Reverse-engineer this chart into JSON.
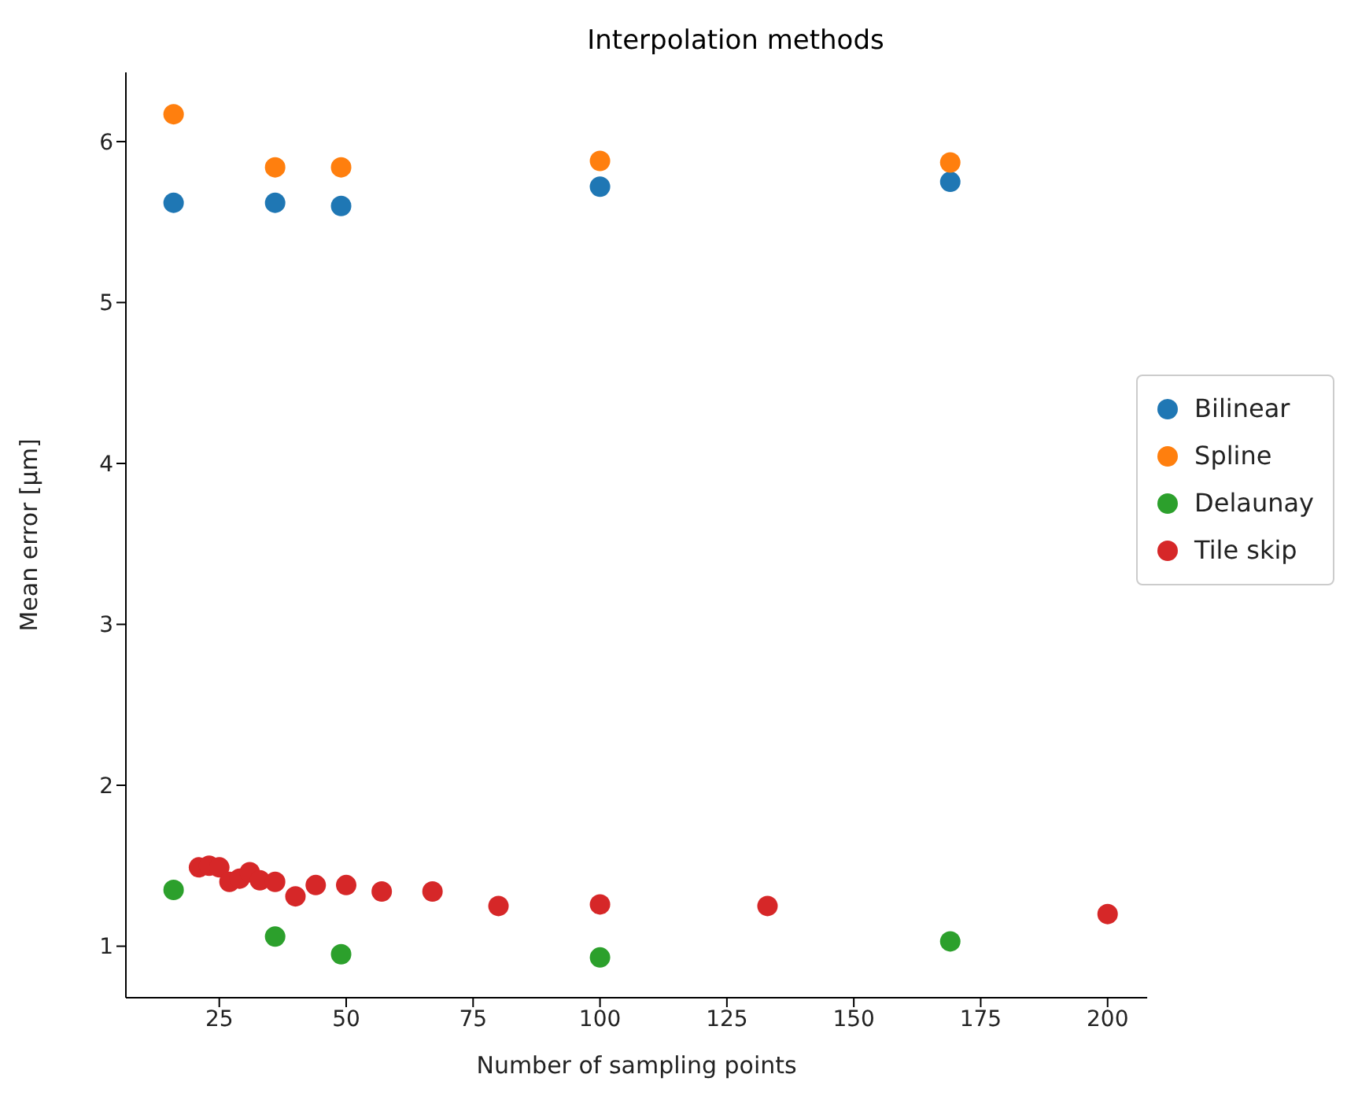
{
  "chart_data": {
    "type": "scatter",
    "title": "Interpolation methods",
    "xlabel": "Number of sampling points",
    "ylabel": "Mean error [μm]",
    "xlim": [
      6.6,
      207.8
    ],
    "xticks": [
      25,
      50,
      75,
      100,
      125,
      150,
      175,
      200
    ],
    "ylim": [
      0.68,
      6.43
    ],
    "yticks": [
      1,
      2,
      3,
      4,
      5,
      6
    ],
    "grid": false,
    "legend": "right",
    "marker": "circle",
    "series": [
      {
        "name": "Bilinear",
        "color": "#1f77b4",
        "x": [
          16,
          36,
          49,
          100,
          169
        ],
        "values": [
          5.62,
          5.62,
          5.6,
          5.72,
          5.75
        ]
      },
      {
        "name": "Spline",
        "color": "#ff7f0e",
        "x": [
          16,
          36,
          49,
          100,
          169
        ],
        "values": [
          6.17,
          5.84,
          5.84,
          5.88,
          5.87
        ]
      },
      {
        "name": "Delaunay",
        "color": "#2ca02c",
        "x": [
          16,
          36,
          49,
          100,
          169
        ],
        "values": [
          1.35,
          1.06,
          0.95,
          0.93,
          1.03
        ]
      },
      {
        "name": "Tile skip",
        "color": "#d62728",
        "x": [
          21,
          23,
          25,
          27,
          29,
          31,
          33,
          36,
          40,
          44,
          50,
          57,
          67,
          80,
          100,
          133,
          200
        ],
        "values": [
          1.49,
          1.5,
          1.49,
          1.4,
          1.42,
          1.46,
          1.41,
          1.4,
          1.31,
          1.38,
          1.38,
          1.34,
          1.34,
          1.25,
          1.26,
          1.25,
          1.2
        ]
      }
    ]
  }
}
